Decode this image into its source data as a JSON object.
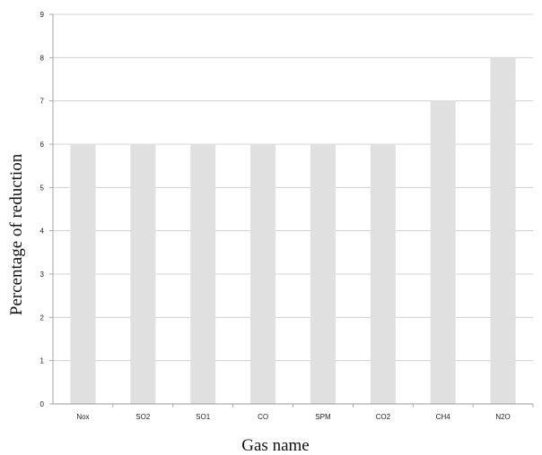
{
  "chart_data": {
    "type": "bar",
    "title": "",
    "xlabel": "Gas name",
    "ylabel": "Percentage of reduction",
    "categories": [
      "Nox",
      "SO2",
      "SO1",
      "CO",
      "SPM",
      "CO2",
      "CH4",
      "N2O"
    ],
    "values": [
      6,
      6,
      6,
      6,
      6,
      6,
      7,
      8
    ],
    "ylim": [
      0,
      9
    ],
    "yticks": [
      "0",
      "1",
      "2",
      "3",
      "4",
      "5",
      "6",
      "7",
      "8",
      "9"
    ],
    "grid": true,
    "legend": "none",
    "colors": {
      "bar": "#e0e0e0",
      "grid": "#c8c8c8",
      "axis": "#9a9a9a"
    }
  }
}
